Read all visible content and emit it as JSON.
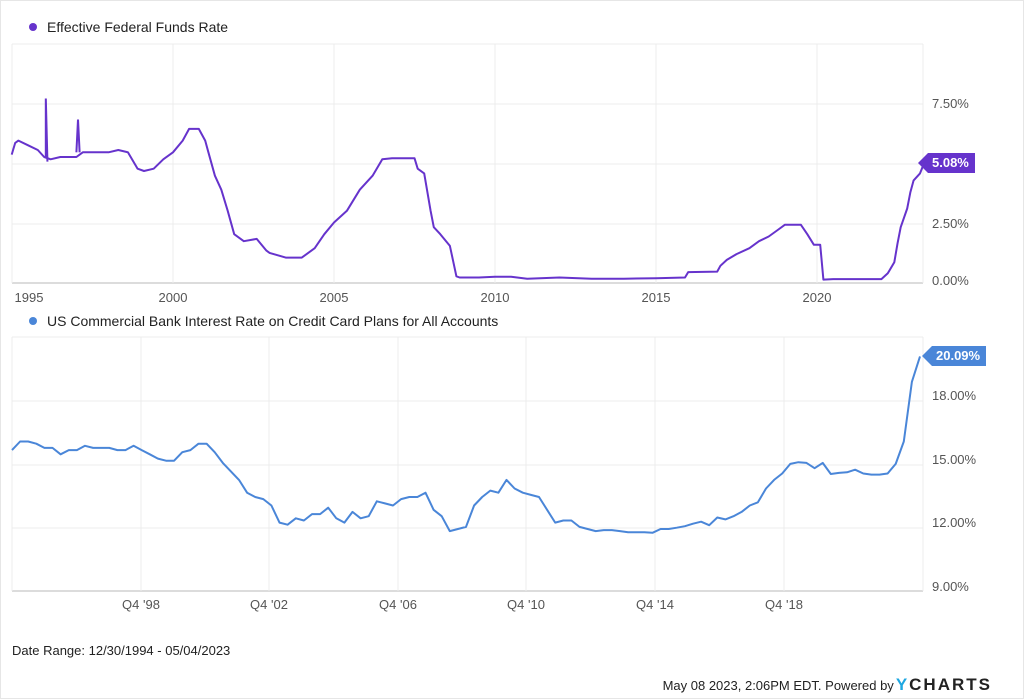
{
  "chart_data": [
    {
      "type": "line",
      "title": "Effective Federal Funds Rate",
      "color": "#6633cc",
      "last_value_label": "5.08%",
      "xlabel": "",
      "ylabel": "",
      "ylim": [
        0,
        10
      ],
      "y_ticks": [
        "0.00%",
        "2.50%",
        "5.00%",
        "7.50%"
      ],
      "y_tick_labels_shown": [
        "7.50%",
        "2.50%",
        "0.00%"
      ],
      "x_ticks": [
        "1995",
        "2000",
        "2005",
        "2010",
        "2015",
        "2020"
      ],
      "grid": true,
      "x": [
        1994.99,
        1995.1,
        1995.2,
        1995.5,
        1995.8,
        1996.0,
        1996.2,
        1996.5,
        1996.8,
        1997.0,
        1997.2,
        1997.5,
        1997.8,
        1998.0,
        1998.3,
        1998.6,
        1998.9,
        1999.1,
        1999.4,
        1999.7,
        2000.0,
        2000.3,
        2000.5,
        2000.8,
        2001.0,
        2001.1,
        2001.3,
        2001.5,
        2001.7,
        2001.9,
        2002.2,
        2002.6,
        2002.9,
        2003.0,
        2003.5,
        2004.0,
        2004.4,
        2004.7,
        2005.0,
        2005.4,
        2005.8,
        2006.2,
        2006.5,
        2006.8,
        2007.2,
        2007.5,
        2007.6,
        2007.8,
        2008.0,
        2008.1,
        2008.3,
        2008.6,
        2008.8,
        2008.9,
        2009.5,
        2010.0,
        2010.5,
        2011.0,
        2012.0,
        2013.0,
        2014.0,
        2015.0,
        2015.9,
        2016.0,
        2016.9,
        2017.0,
        2017.2,
        2017.5,
        2017.9,
        2018.2,
        2018.5,
        2018.8,
        2019.0,
        2019.5,
        2019.7,
        2019.9,
        2020.1,
        2020.2,
        2020.5,
        2021.0,
        2022.0,
        2022.2,
        2022.4,
        2022.5,
        2022.6,
        2022.8,
        2022.9,
        2023.0,
        2023.2,
        2023.34
      ],
      "values": [
        5.4,
        5.9,
        6.0,
        5.8,
        5.6,
        5.3,
        5.2,
        5.3,
        5.3,
        5.3,
        5.5,
        5.5,
        5.5,
        5.5,
        5.6,
        5.5,
        4.8,
        4.7,
        4.8,
        5.2,
        5.5,
        6.0,
        6.5,
        6.5,
        6.0,
        5.5,
        4.5,
        3.9,
        3.0,
        2.0,
        1.7,
        1.8,
        1.3,
        1.2,
        1.0,
        1.0,
        1.4,
        2.0,
        2.5,
        3.0,
        3.9,
        4.5,
        5.2,
        5.25,
        5.25,
        5.25,
        4.8,
        4.6,
        3.0,
        2.3,
        2.0,
        1.5,
        0.2,
        0.15,
        0.15,
        0.18,
        0.18,
        0.1,
        0.15,
        0.1,
        0.1,
        0.12,
        0.15,
        0.38,
        0.4,
        0.65,
        0.9,
        1.15,
        1.4,
        1.7,
        1.9,
        2.2,
        2.4,
        2.4,
        2.0,
        1.55,
        1.55,
        0.06,
        0.08,
        0.08,
        0.08,
        0.33,
        0.8,
        1.6,
        2.3,
        3.1,
        3.8,
        4.3,
        4.6,
        5.08
      ]
    },
    {
      "type": "line",
      "title": "US Commercial Bank Interest Rate on Credit Card Plans for All Accounts",
      "color": "#4a86d8",
      "last_value_label": "20.09%",
      "xlabel": "",
      "ylabel": "",
      "ylim": [
        9,
        20.5
      ],
      "y_ticks": [
        "9.00%",
        "12.00%",
        "15.00%",
        "18.00%"
      ],
      "x_ticks": [
        "Q4 '98",
        "Q4 '02",
        "Q4 '06",
        "Q4 '10",
        "Q4 '14",
        "Q4 '18"
      ],
      "grid": true,
      "start_quarter": "Q4 '94",
      "values": [
        15.7,
        16.1,
        16.1,
        16.0,
        15.8,
        15.8,
        15.5,
        15.7,
        15.7,
        15.9,
        15.8,
        15.8,
        15.8,
        15.7,
        15.7,
        15.9,
        15.7,
        15.5,
        15.3,
        15.2,
        15.2,
        15.6,
        15.7,
        16.0,
        16.0,
        15.6,
        15.1,
        14.7,
        14.3,
        13.7,
        13.5,
        13.4,
        13.1,
        12.3,
        12.2,
        12.5,
        12.4,
        12.7,
        12.7,
        13.0,
        12.5,
        12.3,
        12.8,
        12.5,
        12.6,
        13.3,
        13.2,
        13.1,
        13.4,
        13.5,
        13.5,
        13.7,
        12.9,
        12.6,
        11.9,
        12.0,
        12.1,
        13.1,
        13.5,
        13.8,
        13.7,
        14.3,
        13.9,
        13.7,
        13.6,
        13.5,
        12.9,
        12.3,
        12.4,
        12.4,
        12.1,
        12.0,
        11.9,
        11.95,
        11.95,
        11.9,
        11.85,
        11.85,
        11.85,
        11.82,
        12.0,
        12.0,
        12.06,
        12.13,
        12.25,
        12.34,
        12.18,
        12.54,
        12.45,
        12.6,
        12.8,
        13.1,
        13.25,
        13.9,
        14.3,
        14.6,
        15.05,
        15.13,
        15.1,
        14.85,
        15.1,
        14.58,
        14.63,
        14.66,
        14.78,
        14.6,
        14.55,
        14.55,
        14.6,
        15.05,
        16.1,
        18.9,
        20.09
      ]
    }
  ],
  "legends": {
    "top": "Effective Federal Funds Rate",
    "bottom": "US Commercial Bank Interest Rate on Credit Card Plans for All Accounts"
  },
  "labels": {
    "top_y": [
      "7.50%",
      "2.50%",
      "0.00%"
    ],
    "top_x": [
      "1995",
      "2000",
      "2005",
      "2010",
      "2015",
      "2020"
    ],
    "bottom_y": [
      "18.00%",
      "15.00%",
      "12.00%",
      "9.00%"
    ],
    "bottom_x": [
      "Q4 '98",
      "Q4 '02",
      "Q4 '06",
      "Q4 '10",
      "Q4 '14",
      "Q4 '18"
    ],
    "top_badge": "5.08%",
    "bottom_badge": "20.09%"
  },
  "footer": {
    "date_range": "Date Range: 12/30/1994 - 05/04/2023",
    "timestamp": "May 08 2023, 2:06PM EDT. Powered by",
    "brand_y": "Y",
    "brand_rest": "CHARTS"
  },
  "colors": {
    "fed": "#6633cc",
    "cc": "#4a86d8",
    "grid": "#ececec"
  }
}
